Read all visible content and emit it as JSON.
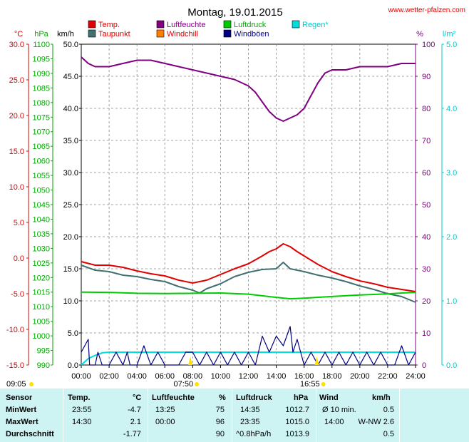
{
  "title": "Montag, 19.01.2015",
  "site": "www.wetter-pfalzen.com",
  "units": {
    "temp": "°C",
    "pressure": "hPa",
    "wind": "km/h",
    "humidity": "%",
    "rain": "l/m²"
  },
  "legend": [
    {
      "label": "Temp.",
      "color": "#e00000"
    },
    {
      "label": "Luftfeuchte",
      "color": "#800080"
    },
    {
      "label": "Luftdruck",
      "color": "#00cc00"
    },
    {
      "label": "Regen*",
      "color": "#00dddd"
    },
    {
      "label": "Taupunkt",
      "color": "#407070"
    },
    {
      "label": "Windchill",
      "color": "#ff8000"
    },
    {
      "label": "Windböen",
      "color": "#000080"
    }
  ],
  "colors": {
    "temp_axis": "#e00000",
    "pressure_axis": "#00aa00",
    "humidity_axis": "#800080",
    "rain_axis": "#00cccc",
    "wind_axis": "#000000",
    "table_bg": "#cdf3f3"
  },
  "chart_data": {
    "type": "line",
    "x_ticks": [
      "00:00",
      "02:00",
      "04:00",
      "06:00",
      "08:00",
      "10:00",
      "12:00",
      "14:00",
      "16:00",
      "18:00",
      "20:00",
      "22:00",
      "24:00"
    ],
    "axes": {
      "temp": {
        "label": "°C",
        "min": -15,
        "max": 30,
        "ticks": [
          "30.0",
          "25.0",
          "20.0",
          "15.0",
          "10.0",
          "5.0",
          "0.0",
          "-5.0",
          "-10.0",
          "-15.0"
        ]
      },
      "pressure": {
        "label": "hPa",
        "min": 990,
        "max": 1100,
        "ticks": [
          "1100",
          "1095",
          "1090",
          "1085",
          "1080",
          "1075",
          "1070",
          "1065",
          "1060",
          "1055",
          "1050",
          "1045",
          "1040",
          "1035",
          "1030",
          "1025",
          "1020",
          "1015",
          "1010",
          "1005",
          "1000",
          "995",
          "990"
        ]
      },
      "wind": {
        "label": "km/h",
        "min": 0,
        "max": 50,
        "ticks": [
          "50.0",
          "45.0",
          "40.0",
          "35.0",
          "30.0",
          "25.0",
          "20.0",
          "15.0",
          "10.0",
          "5.0",
          "0.0"
        ]
      },
      "humidity": {
        "label": "%",
        "min": 0,
        "max": 100,
        "ticks": [
          "100",
          "90",
          "80",
          "70",
          "60",
          "50",
          "40",
          "30",
          "20",
          "10",
          "0"
        ]
      },
      "rain": {
        "label": "l/m²",
        "min": 0,
        "max": 5,
        "ticks": [
          "5.0",
          "4.0",
          "3.0",
          "2.0",
          "1.0",
          "0.0"
        ]
      }
    },
    "sun": {
      "rise": "07:50",
      "set": "16:55",
      "prev_set": "09:05"
    },
    "series": [
      {
        "name": "Luftfeuchte",
        "axis": "humidity",
        "color": "#800080",
        "x": [
          0,
          0.5,
          1,
          2,
          3,
          4,
          5,
          6,
          7,
          8,
          9,
          10,
          11,
          12,
          12.5,
          13,
          13.5,
          14,
          14.5,
          15,
          15.5,
          16,
          16.5,
          17,
          17.5,
          18,
          19,
          20,
          21,
          22,
          23,
          24
        ],
        "y": [
          96,
          94,
          93,
          93,
          94,
          95,
          95,
          94,
          93,
          92,
          91,
          90,
          89,
          87,
          85,
          82,
          79,
          77,
          76,
          77,
          78,
          80,
          84,
          88,
          91,
          92,
          92,
          93,
          93,
          93,
          94,
          94
        ]
      },
      {
        "name": "Temp.",
        "axis": "temp",
        "color": "#e00000",
        "x": [
          0,
          1,
          2,
          3,
          4,
          5,
          6,
          7,
          8,
          9,
          10,
          11,
          12,
          13,
          13.5,
          14,
          14.5,
          15,
          15.5,
          16,
          17,
          18,
          19,
          20,
          21,
          22,
          23,
          24
        ],
        "y": [
          -0.5,
          -1.0,
          -1.0,
          -1.3,
          -1.8,
          -2.2,
          -2.5,
          -3.1,
          -3.5,
          -3.1,
          -2.3,
          -1.5,
          -0.8,
          0.3,
          0.9,
          1.3,
          2.0,
          1.6,
          0.9,
          0.3,
          -0.9,
          -1.9,
          -2.6,
          -3.2,
          -3.6,
          -4.1,
          -4.4,
          -4.7
        ]
      },
      {
        "name": "Taupunkt",
        "axis": "temp",
        "color": "#407070",
        "x": [
          0,
          1,
          2,
          3,
          4,
          5,
          6,
          7,
          8,
          8.5,
          9,
          10,
          11,
          12,
          13,
          14,
          14.5,
          15,
          16,
          17,
          18,
          19,
          20,
          21,
          22,
          23,
          24
        ],
        "y": [
          -1.0,
          -1.7,
          -1.9,
          -2.4,
          -2.6,
          -3.0,
          -3.3,
          -4.0,
          -4.5,
          -4.9,
          -4.3,
          -3.6,
          -2.6,
          -2.0,
          -1.6,
          -1.5,
          -0.6,
          -1.5,
          -1.9,
          -2.4,
          -2.8,
          -3.3,
          -3.9,
          -4.4,
          -5.0,
          -5.4,
          -6.2
        ]
      },
      {
        "name": "Luftdruck",
        "axis": "pressure",
        "color": "#00cc00",
        "x": [
          0,
          2,
          4,
          6,
          8,
          10,
          12,
          14,
          15,
          16,
          18,
          20,
          22,
          23,
          24
        ],
        "y": [
          1015.0,
          1014.9,
          1014.6,
          1014.5,
          1014.6,
          1014.7,
          1014.3,
          1013.2,
          1012.7,
          1012.9,
          1013.5,
          1014.0,
          1014.4,
          1014.7,
          1014.9
        ]
      },
      {
        "name": "Regen*",
        "axis": "rain",
        "color": "#00dddd",
        "x": [
          0,
          0.5,
          1,
          1.5,
          2,
          3,
          24
        ],
        "y": [
          0,
          0.1,
          0.15,
          0.19,
          0.2,
          0.2,
          0.2
        ]
      },
      {
        "name": "Windböen",
        "axis": "wind",
        "color": "#000080",
        "x": [
          0,
          0.5,
          0.6,
          1,
          1.2,
          1.5,
          2,
          2.5,
          3,
          3.3,
          3.5,
          4,
          4.5,
          5,
          5.5,
          6,
          7,
          7.5,
          8,
          8.5,
          9,
          9.5,
          10,
          10.5,
          11,
          11.5,
          12,
          12.5,
          13,
          13.5,
          14,
          14.5,
          15,
          15.2,
          15.5,
          16,
          16.5,
          17,
          17.5,
          18,
          18.5,
          19,
          19.5,
          20,
          20.5,
          21,
          21.5,
          22,
          22.5,
          23,
          23.5,
          24
        ],
        "y": [
          2,
          4,
          0,
          0,
          2,
          0,
          0,
          2,
          0,
          2,
          0,
          0,
          3,
          0,
          2,
          0,
          0,
          2,
          2,
          0,
          2,
          0,
          2,
          0,
          2,
          0,
          2,
          0,
          4.5,
          2,
          4.5,
          3,
          6,
          2,
          4,
          0,
          2,
          0,
          2,
          0,
          2,
          0,
          2,
          0,
          2,
          0,
          2,
          0,
          0,
          3,
          0,
          2
        ]
      }
    ]
  },
  "table": {
    "headers": {
      "sensor": "Sensor",
      "temp": "Temp.",
      "temp_unit": "°C",
      "humidity": "Luftfeuchte",
      "humidity_unit": "%",
      "pressure": "Luftdruck",
      "pressure_unit": "hPa",
      "wind": "Wind",
      "wind_unit": "km/h"
    },
    "rows": [
      {
        "label": "MinWert",
        "temp_time": "23:55",
        "temp_val": "-4.7",
        "hum_time": "13:25",
        "hum_val": "75",
        "pres_time": "14:35",
        "pres_val": "1012.7",
        "wind_label": "Ø 10 min.",
        "wind_val": "0.5"
      },
      {
        "label": "MaxWert",
        "temp_time": "14:30",
        "temp_val": "2.1",
        "hum_time": "00:00",
        "hum_val": "96",
        "pres_time": "23:35",
        "pres_val": "1015.0",
        "wind_label": "14:00",
        "wind_val": "W-NW 2.6"
      },
      {
        "label": "Durchschnitt",
        "temp_time": "",
        "temp_val": "-1.77",
        "hum_time": "",
        "hum_val": "90",
        "pres_time": "^0.8hPa/h",
        "pres_val": "1013.9",
        "wind_label": "",
        "wind_val": "0.5"
      }
    ]
  }
}
